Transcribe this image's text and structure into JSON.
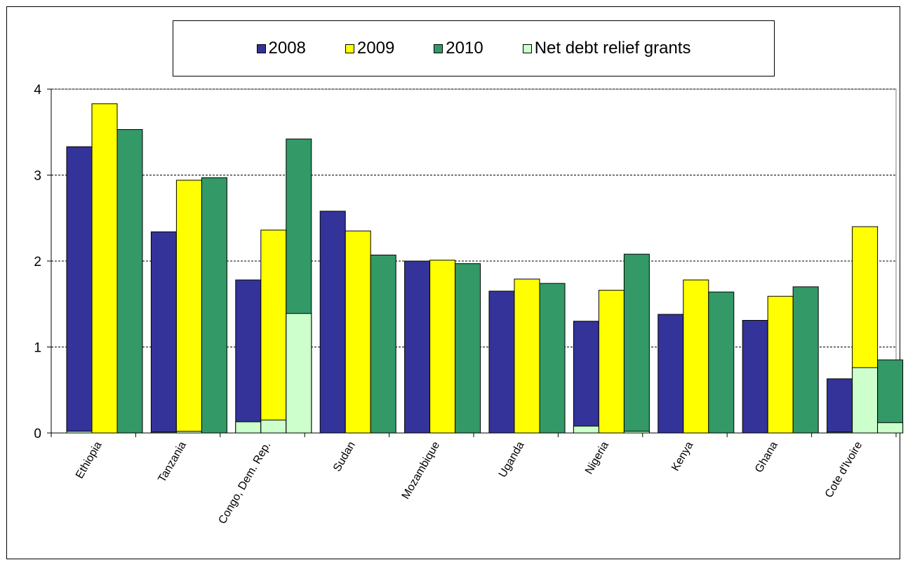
{
  "chart_data": {
    "type": "bar",
    "categories": [
      "Ethiopia",
      "Tanzania",
      "Congo, Dem. Rep.",
      "Sudan",
      "Mozambique",
      "Uganda",
      "Nigeria",
      "Kenya",
      "Ghana",
      "Cote d'Ivoire"
    ],
    "series": [
      {
        "name": "2008",
        "color": "#333399",
        "values": [
          3.33,
          2.34,
          1.78,
          2.58,
          2.0,
          1.65,
          1.3,
          1.38,
          1.31,
          0.63
        ]
      },
      {
        "name": "2009",
        "color": "#ffff00",
        "values": [
          3.83,
          2.94,
          2.36,
          2.35,
          2.01,
          1.79,
          1.66,
          1.78,
          1.59,
          2.4
        ]
      },
      {
        "name": "2010",
        "color": "#339966",
        "values": [
          3.53,
          2.97,
          3.42,
          2.07,
          1.97,
          1.74,
          2.08,
          1.64,
          1.7,
          0.85
        ]
      }
    ],
    "overlay": {
      "name": "Net debt relief grants",
      "color": "#ccffcc",
      "values_by_year": {
        "2008": [
          0.02,
          0.01,
          0.13,
          0.0,
          0.0,
          0.0,
          0.08,
          0.0,
          0.0,
          0.01
        ],
        "2009": [
          0.0,
          0.02,
          0.15,
          0.0,
          0.0,
          0.0,
          0.0,
          0.0,
          0.0,
          0.76
        ],
        "2010": [
          0.0,
          0.0,
          1.39,
          0.0,
          0.0,
          0.0,
          0.02,
          0.0,
          0.0,
          0.12
        ]
      }
    },
    "ylim": [
      0,
      4
    ],
    "yticks": [
      "0",
      "1",
      "2",
      "3",
      "4"
    ],
    "grid": true,
    "legend_position": "top"
  }
}
